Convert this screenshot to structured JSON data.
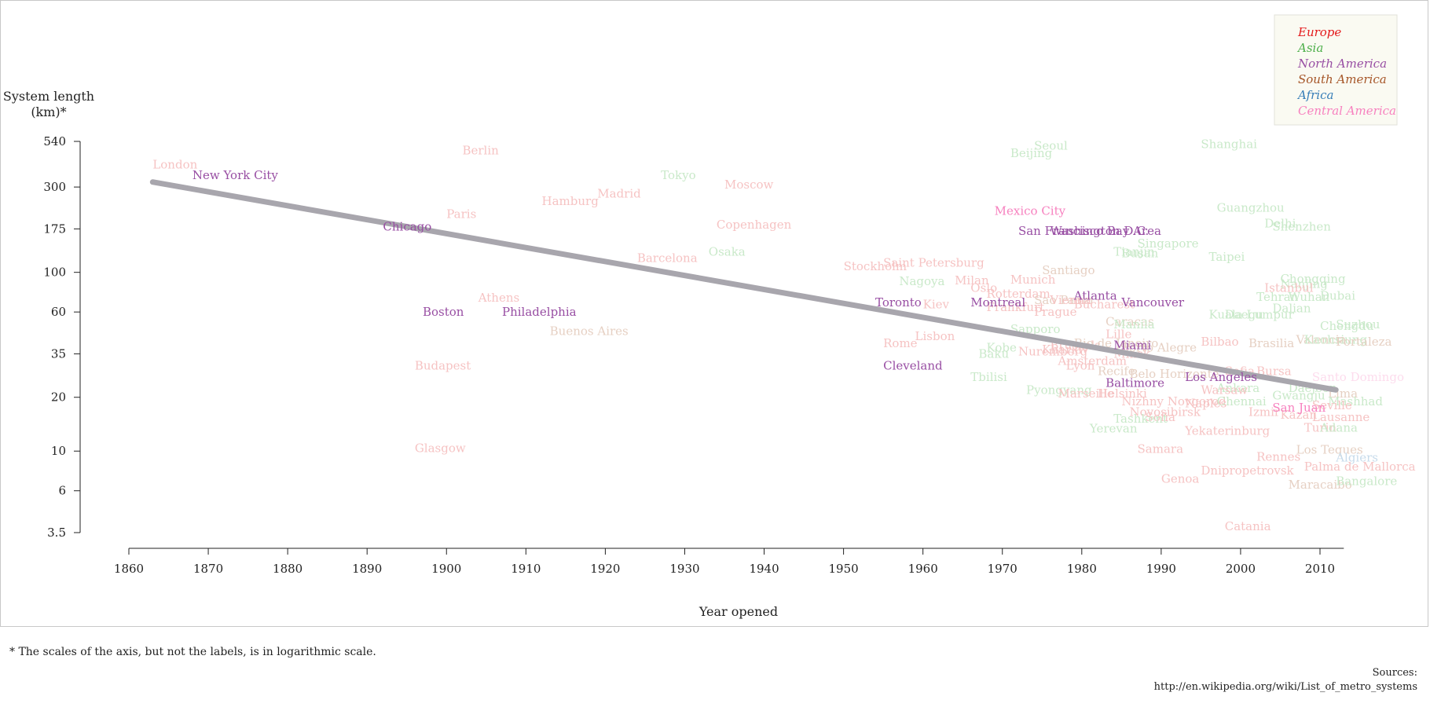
{
  "footnote": "* The scales of the axis, but not the labels, is in logarithmic scale.",
  "sources": {
    "label": "Sources:",
    "url": "http://en.wikipedia.org/wiki/List_of_metro_systems"
  },
  "chart_data": {
    "type": "scatter",
    "title": "",
    "xlabel": "Year opened",
    "ylabel_lines": [
      "System length",
      "(km)*"
    ],
    "x_ticks": [
      1860,
      1870,
      1880,
      1890,
      1900,
      1910,
      1920,
      1930,
      1940,
      1950,
      1960,
      1970,
      1980,
      1990,
      2000,
      2010
    ],
    "y_ticks": [
      540,
      300,
      175,
      100,
      60,
      35,
      20,
      10,
      6,
      3.5
    ],
    "xlim": [
      1860,
      2013
    ],
    "ylim": [
      3.5,
      540
    ],
    "y_scale": "log",
    "trendline": {
      "x": [
        1863,
        2012
      ],
      "y": [
        320,
        22
      ],
      "color": "#a8a6ad"
    },
    "legend": {
      "position": "top-right",
      "entries": [
        {
          "name": "Europe",
          "color": "#e41a1c"
        },
        {
          "name": "Asia",
          "color": "#4daf4a"
        },
        {
          "name": "North America",
          "color": "#984ea3"
        },
        {
          "name": "South America",
          "color": "#a65628"
        },
        {
          "name": "Africa",
          "color": "#377eb8"
        },
        {
          "name": "Central America",
          "color": "#f781bf"
        }
      ]
    },
    "faded_colors": {
      "Europe": "#f6c3c3",
      "Asia": "#c9e9c9"
    },
    "points": [
      {
        "name": "London",
        "region": "Europe",
        "x": 1863,
        "y": 400
      },
      {
        "name": "New York City",
        "region": "North America",
        "x": 1868,
        "y": 350,
        "highlight": true
      },
      {
        "name": "Berlin",
        "region": "Europe",
        "x": 1902,
        "y": 480
      },
      {
        "name": "Budapest",
        "region": "Europe",
        "x": 1896,
        "y": 30
      },
      {
        "name": "Glasgow",
        "region": "Europe",
        "x": 1896,
        "y": 10.4
      },
      {
        "name": "Chicago",
        "region": "North America",
        "x": 1892,
        "y": 180,
        "highlight": true
      },
      {
        "name": "Boston",
        "region": "North America",
        "x": 1897,
        "y": 60,
        "highlight": true
      },
      {
        "name": "Paris",
        "region": "Europe",
        "x": 1900,
        "y": 212
      },
      {
        "name": "Athens",
        "region": "Europe",
        "x": 1904,
        "y": 72
      },
      {
        "name": "Philadelphia",
        "region": "North America",
        "x": 1907,
        "y": 60,
        "highlight": true
      },
      {
        "name": "Hamburg",
        "region": "Europe",
        "x": 1912,
        "y": 250
      },
      {
        "name": "Buenos Aires",
        "region": "South America",
        "x": 1913,
        "y": 47
      },
      {
        "name": "Madrid",
        "region": "Europe",
        "x": 1919,
        "y": 275
      },
      {
        "name": "Tokyo",
        "region": "Asia",
        "x": 1927,
        "y": 350
      },
      {
        "name": "Barcelona",
        "region": "Europe",
        "x": 1924,
        "y": 120
      },
      {
        "name": "Moscow",
        "region": "Europe",
        "x": 1935,
        "y": 310
      },
      {
        "name": "Copenhagen",
        "region": "Europe",
        "x": 1934,
        "y": 185
      },
      {
        "name": "Osaka",
        "region": "Asia",
        "x": 1933,
        "y": 130
      },
      {
        "name": "Stockholm",
        "region": "Europe",
        "x": 1950,
        "y": 108
      },
      {
        "name": "Saint Petersburg",
        "region": "Europe",
        "x": 1955,
        "y": 113
      },
      {
        "name": "Nagoya",
        "region": "Asia",
        "x": 1957,
        "y": 89
      },
      {
        "name": "Toronto",
        "region": "North America",
        "x": 1954,
        "y": 68,
        "highlight": true
      },
      {
        "name": "Rome",
        "region": "Europe",
        "x": 1955,
        "y": 40
      },
      {
        "name": "Lisbon",
        "region": "Europe",
        "x": 1959,
        "y": 44
      },
      {
        "name": "Cleveland",
        "region": "North America",
        "x": 1955,
        "y": 30,
        "highlight": true
      },
      {
        "name": "Kiev",
        "region": "Europe",
        "x": 1960,
        "y": 66
      },
      {
        "name": "Milan",
        "region": "Europe",
        "x": 1964,
        "y": 90
      },
      {
        "name": "Oslo",
        "region": "Europe",
        "x": 1966,
        "y": 82
      },
      {
        "name": "Rotterdam",
        "region": "Europe",
        "x": 1968,
        "y": 76
      },
      {
        "name": "Munich",
        "region": "Europe",
        "x": 1971,
        "y": 91
      },
      {
        "name": "Montreal",
        "region": "North America",
        "x": 1966,
        "y": 68,
        "highlight": true
      },
      {
        "name": "Frankfurt",
        "region": "Europe",
        "x": 1968,
        "y": 64
      },
      {
        "name": "Mexico City",
        "region": "Central America",
        "x": 1969,
        "y": 220,
        "highlight": true
      },
      {
        "name": "San Francisco Bay Area",
        "region": "North America",
        "x": 1972,
        "y": 170,
        "highlight": true
      },
      {
        "name": "Washington D.C.",
        "region": "North America",
        "x": 1976,
        "y": 170,
        "highlight": true
      },
      {
        "name": "Beijing",
        "region": "Asia",
        "x": 1971,
        "y": 465
      },
      {
        "name": "Seoul",
        "region": "Asia",
        "x": 1974,
        "y": 510
      },
      {
        "name": "Santiago",
        "region": "South America",
        "x": 1975,
        "y": 103
      },
      {
        "name": "Sao Paulo",
        "region": "South America",
        "x": 1974,
        "y": 70
      },
      {
        "name": "Prague",
        "region": "Europe",
        "x": 1974,
        "y": 60
      },
      {
        "name": "Vienna",
        "region": "Europe",
        "x": 1976,
        "y": 70
      },
      {
        "name": "Bucharest",
        "region": "Europe",
        "x": 1979,
        "y": 66
      },
      {
        "name": "Atlanta",
        "region": "North America",
        "x": 1979,
        "y": 74,
        "highlight": true
      },
      {
        "name": "Vancouver",
        "region": "North America",
        "x": 1985,
        "y": 68,
        "highlight": true
      },
      {
        "name": "Sapporo",
        "region": "Asia",
        "x": 1971,
        "y": 48
      },
      {
        "name": "Kobe",
        "region": "Asia",
        "x": 1968,
        "y": 38
      },
      {
        "name": "Baku",
        "region": "Asia",
        "x": 1967,
        "y": 35
      },
      {
        "name": "Nuremberg",
        "region": "Europe",
        "x": 1972,
        "y": 36
      },
      {
        "name": "Brussels",
        "region": "Europe",
        "x": 1976,
        "y": 39
      },
      {
        "name": "Kharkiv",
        "region": "Europe",
        "x": 1975,
        "y": 37
      },
      {
        "name": "Amsterdam",
        "region": "Europe",
        "x": 1977,
        "y": 32
      },
      {
        "name": "Rio de Janeiro",
        "region": "South America",
        "x": 1979,
        "y": 40
      },
      {
        "name": "Lyon",
        "region": "Europe",
        "x": 1978,
        "y": 30
      },
      {
        "name": "Tbilisi",
        "region": "Asia",
        "x": 1966,
        "y": 26
      },
      {
        "name": "Pyongyang",
        "region": "Asia",
        "x": 1973,
        "y": 22
      },
      {
        "name": "Marseille",
        "region": "Europe",
        "x": 1977,
        "y": 21
      },
      {
        "name": "Helsinki",
        "region": "Europe",
        "x": 1982,
        "y": 21
      },
      {
        "name": "Caracas",
        "region": "South America",
        "x": 1983,
        "y": 53
      },
      {
        "name": "Manila",
        "region": "Asia",
        "x": 1984,
        "y": 51
      },
      {
        "name": "Lille",
        "region": "Europe",
        "x": 1983,
        "y": 45
      },
      {
        "name": "Miami",
        "region": "North America",
        "x": 1984,
        "y": 39,
        "highlight": true
      },
      {
        "name": "Porto Alegre",
        "region": "South America",
        "x": 1985,
        "y": 38
      },
      {
        "name": "Minsk",
        "region": "Europe",
        "x": 1984,
        "y": 35
      },
      {
        "name": "Recife",
        "region": "South America",
        "x": 1982,
        "y": 28
      },
      {
        "name": "Belo Horizonte",
        "region": "South America",
        "x": 1986,
        "y": 27
      },
      {
        "name": "Baltimore",
        "region": "North America",
        "x": 1983,
        "y": 24,
        "highlight": true
      },
      {
        "name": "Nizhny Novgorod",
        "region": "Europe",
        "x": 1985,
        "y": 19
      },
      {
        "name": "Novosibirsk",
        "region": "Europe",
        "x": 1986,
        "y": 16.5
      },
      {
        "name": "Samara",
        "region": "Europe",
        "x": 1987,
        "y": 10.3
      },
      {
        "name": "Yerevan",
        "region": "Asia",
        "x": 1981,
        "y": 13.4
      },
      {
        "name": "Sofia",
        "region": "Europe",
        "x": 1988,
        "y": 15.5
      },
      {
        "name": "Tashkent",
        "region": "Asia",
        "x": 1984,
        "y": 15.2
      },
      {
        "name": "Yekaterinburg",
        "region": "Europe",
        "x": 1993,
        "y": 13
      },
      {
        "name": "Singapore",
        "region": "Asia",
        "x": 1987,
        "y": 145
      },
      {
        "name": "Tianjin",
        "region": "Asia",
        "x": 1984,
        "y": 130
      },
      {
        "name": "Busan",
        "region": "Asia",
        "x": 1985,
        "y": 128
      },
      {
        "name": "Shanghai",
        "region": "Asia",
        "x": 1995,
        "y": 520
      },
      {
        "name": "Guangzhou",
        "region": "Asia",
        "x": 1997,
        "y": 230
      },
      {
        "name": "Taipei",
        "region": "Asia",
        "x": 1996,
        "y": 122
      },
      {
        "name": "Delhi",
        "region": "Asia",
        "x": 2003,
        "y": 188
      },
      {
        "name": "Shenzhen",
        "region": "Asia",
        "x": 2004,
        "y": 180
      },
      {
        "name": "Chongqing",
        "region": "Asia",
        "x": 2005,
        "y": 92
      },
      {
        "name": "Nanjing",
        "region": "Asia",
        "x": 2005,
        "y": 86
      },
      {
        "name": "Istanbul",
        "region": "Europe",
        "x": 2003,
        "y": 82
      },
      {
        "name": "Tehran",
        "region": "Asia",
        "x": 2002,
        "y": 73
      },
      {
        "name": "Wuhan",
        "region": "Asia",
        "x": 2006,
        "y": 73
      },
      {
        "name": "Dubai",
        "region": "Asia",
        "x": 2010,
        "y": 74
      },
      {
        "name": "Dalian",
        "region": "Asia",
        "x": 2004,
        "y": 63
      },
      {
        "name": "Kuala Lumpur",
        "region": "Asia",
        "x": 1996,
        "y": 58
      },
      {
        "name": "Daegu",
        "region": "Asia",
        "x": 1998,
        "y": 58
      },
      {
        "name": "Chengdu",
        "region": "Asia",
        "x": 2010,
        "y": 50
      },
      {
        "name": "Suzhou",
        "region": "Asia",
        "x": 2012,
        "y": 51
      },
      {
        "name": "Bilbao",
        "region": "Europe",
        "x": 1995,
        "y": 41
      },
      {
        "name": "Brasilia",
        "region": "South America",
        "x": 2001,
        "y": 40
      },
      {
        "name": "Valencia",
        "region": "South America",
        "x": 2007,
        "y": 42
      },
      {
        "name": "Kaohsiung",
        "region": "Asia",
        "x": 2008,
        "y": 42
      },
      {
        "name": "Fortaleza",
        "region": "South America",
        "x": 2012,
        "y": 41
      },
      {
        "name": "Los Angeles",
        "region": "North America",
        "x": 1993,
        "y": 26,
        "highlight": true
      },
      {
        "name": "Sofia",
        "region": "Europe",
        "x": 1998,
        "y": 28
      },
      {
        "name": "Bursa",
        "region": "Europe",
        "x": 2002,
        "y": 28
      },
      {
        "name": "Santo Domingo",
        "region": "Central America",
        "x": 2009,
        "y": 26
      },
      {
        "name": "Ankara",
        "region": "Asia",
        "x": 1997,
        "y": 22.5
      },
      {
        "name": "Warsaw",
        "region": "Europe",
        "x": 1995,
        "y": 22
      },
      {
        "name": "Daejeon",
        "region": "Asia",
        "x": 2006,
        "y": 22.5
      },
      {
        "name": "Lima",
        "region": "South America",
        "x": 2011,
        "y": 21
      },
      {
        "name": "Gwangju",
        "region": "Asia",
        "x": 2004,
        "y": 20.5
      },
      {
        "name": "Mashhad",
        "region": "Asia",
        "x": 2011,
        "y": 19
      },
      {
        "name": "Naples",
        "region": "Europe",
        "x": 1993,
        "y": 18.5
      },
      {
        "name": "Chennai",
        "region": "Asia",
        "x": 1997,
        "y": 19
      },
      {
        "name": "San Juan",
        "region": "Central America",
        "x": 2004,
        "y": 17.5,
        "highlight": true
      },
      {
        "name": "Seville",
        "region": "Europe",
        "x": 2009,
        "y": 18
      },
      {
        "name": "Izmir",
        "region": "Europe",
        "x": 2001,
        "y": 16.5
      },
      {
        "name": "Kazan",
        "region": "Europe",
        "x": 2005,
        "y": 16
      },
      {
        "name": "Lausanne",
        "region": "Europe",
        "x": 2009,
        "y": 15.5
      },
      {
        "name": "Turin",
        "region": "Europe",
        "x": 2008,
        "y": 13.5
      },
      {
        "name": "Adana",
        "region": "Asia",
        "x": 2010,
        "y": 13.5
      },
      {
        "name": "Los Teques",
        "region": "South America",
        "x": 2007,
        "y": 10.2
      },
      {
        "name": "Rennes",
        "region": "Europe",
        "x": 2002,
        "y": 9.3
      },
      {
        "name": "Algiers",
        "region": "Africa",
        "x": 2012,
        "y": 9.2
      },
      {
        "name": "Palma de Mallorca",
        "region": "Europe",
        "x": 2008,
        "y": 8.2
      },
      {
        "name": "Dnipropetrovsk",
        "region": "Europe",
        "x": 1995,
        "y": 7.8
      },
      {
        "name": "Genoa",
        "region": "Europe",
        "x": 1990,
        "y": 7
      },
      {
        "name": "Maracaibo",
        "region": "South America",
        "x": 2006,
        "y": 6.5
      },
      {
        "name": "Bangalore",
        "region": "Asia",
        "x": 2012,
        "y": 6.8
      },
      {
        "name": "Catania",
        "region": "Europe",
        "x": 1998,
        "y": 3.8
      }
    ]
  }
}
